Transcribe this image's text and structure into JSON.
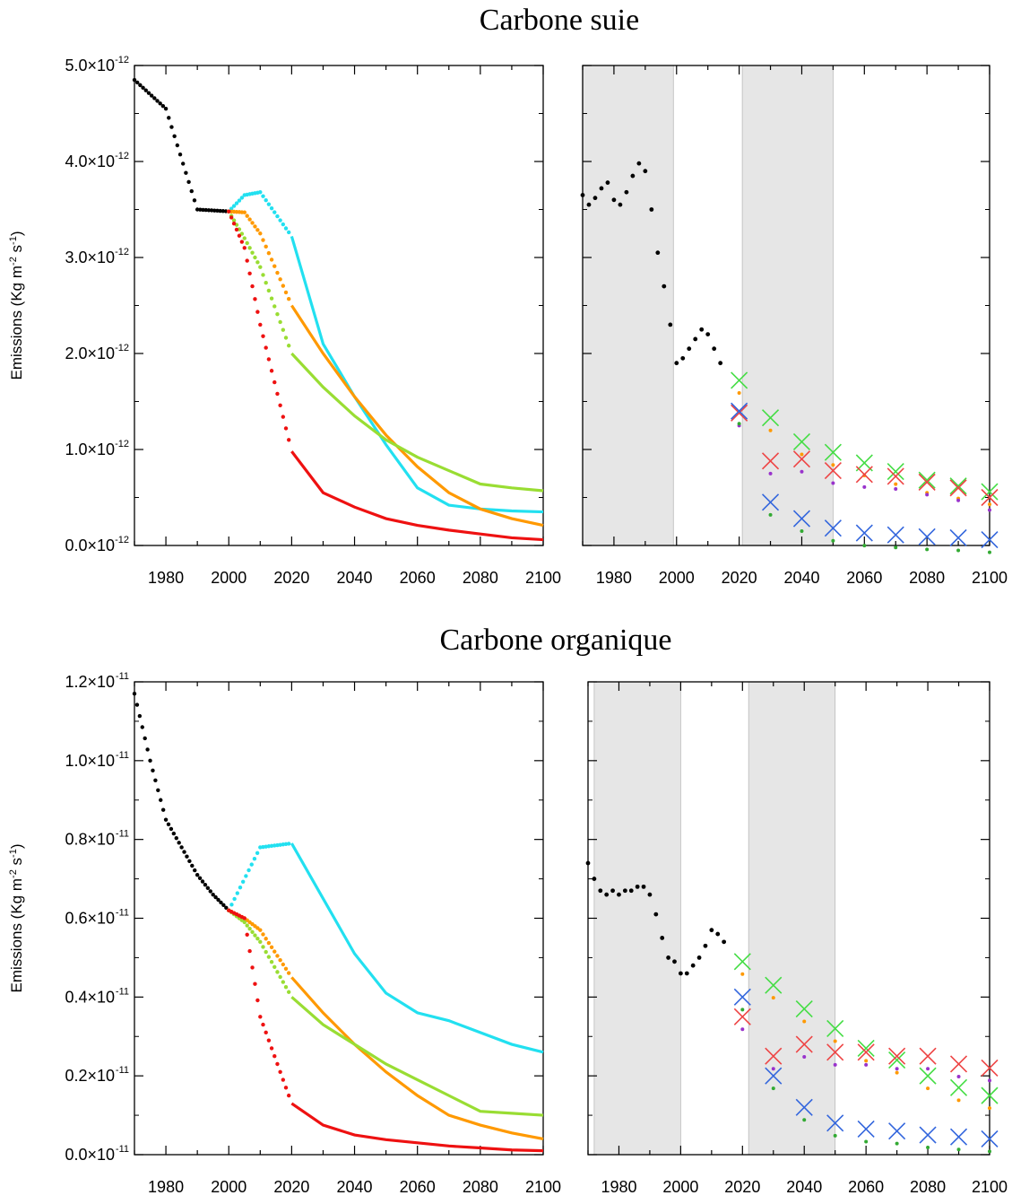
{
  "figure": {
    "top_title": "Carbone suie",
    "bottom_title": "Carbone organique"
  },
  "colors": {
    "historical": "#000000",
    "cyan": "#22e0f0",
    "orange": "#ff9900",
    "lightgreen": "#99dd33",
    "red": "#ee1111",
    "green_x": "#44dd44",
    "red_x": "#ee4444",
    "blue_x": "#3366dd",
    "shade": "#e6e6e6"
  },
  "chart_data": [
    {
      "id": "bc-left",
      "type": "line",
      "title": "Carbone suie",
      "ylabel": "Emissions (Kg m-2 s-1)",
      "ylabel_parts": {
        "pre": "Emissions (Kg m",
        "exp1": "-2",
        "mid": " s",
        "exp2": "-1",
        "post": ")"
      },
      "y_exponent": "-12",
      "xlim": [
        1970,
        2100
      ],
      "ylim": [
        0,
        5.0
      ],
      "x_ticks": [
        "1980",
        "2000",
        "2020",
        "2040",
        "2060",
        "2080",
        "2100"
      ],
      "y_ticks": [
        {
          "value": 0.0,
          "label": "0.0×10"
        },
        {
          "value": 1.0,
          "label": "1.0×10"
        },
        {
          "value": 2.0,
          "label": "2.0×10"
        },
        {
          "value": 3.0,
          "label": "3.0×10"
        },
        {
          "value": 4.0,
          "label": "4.0×10"
        },
        {
          "value": 5.0,
          "label": "5.0×10"
        }
      ],
      "series": [
        {
          "color": "#000000",
          "x": [
            1970,
            1980,
            1990,
            2000
          ],
          "y": [
            4.85,
            4.55,
            3.5,
            3.48
          ]
        },
        {
          "color": "#22e0f0",
          "x": [
            2000,
            2005,
            2010,
            2020,
            2030,
            2040,
            2050,
            2060,
            2070,
            2080,
            2090,
            2100
          ],
          "y": [
            3.48,
            3.65,
            3.68,
            3.22,
            2.1,
            1.55,
            1.05,
            0.6,
            0.42,
            0.38,
            0.36,
            0.35
          ]
        },
        {
          "color": "#ff9900",
          "x": [
            2000,
            2005,
            2010,
            2020,
            2030,
            2040,
            2050,
            2060,
            2070,
            2080,
            2090,
            2100
          ],
          "y": [
            3.48,
            3.47,
            3.25,
            2.5,
            2.0,
            1.55,
            1.15,
            0.82,
            0.55,
            0.38,
            0.28,
            0.21
          ]
        },
        {
          "color": "#99dd33",
          "x": [
            2000,
            2005,
            2010,
            2020,
            2030,
            2040,
            2050,
            2060,
            2070,
            2080,
            2090,
            2100
          ],
          "y": [
            3.48,
            3.2,
            2.9,
            2.0,
            1.65,
            1.35,
            1.1,
            0.92,
            0.78,
            0.64,
            0.6,
            0.57
          ]
        },
        {
          "color": "#ee1111",
          "x": [
            2000,
            2005,
            2010,
            2020,
            2030,
            2040,
            2050,
            2060,
            2070,
            2080,
            2090,
            2100
          ],
          "y": [
            3.48,
            3.1,
            2.3,
            0.98,
            0.55,
            0.4,
            0.28,
            0.21,
            0.16,
            0.12,
            0.08,
            0.06
          ]
        }
      ]
    },
    {
      "id": "bc-right",
      "type": "scatter",
      "xlim": [
        1970,
        2100
      ],
      "ylim": [
        0,
        5.0
      ],
      "x_ticks": [
        "1980",
        "2000",
        "2020",
        "2040",
        "2060",
        "2080",
        "2100"
      ],
      "shaded_x": [
        [
          1970,
          1999
        ],
        [
          2021,
          2050
        ]
      ],
      "historical": {
        "x": [
          1970,
          1972,
          1974,
          1976,
          1978,
          1980,
          1982,
          1984,
          1986,
          1988,
          1990,
          1992,
          1994,
          1996,
          1998,
          2000,
          2002,
          2004,
          2006,
          2008,
          2010,
          2012,
          2014
        ],
        "y": [
          3.65,
          3.55,
          3.62,
          3.72,
          3.78,
          3.6,
          3.55,
          3.68,
          3.85,
          3.98,
          3.9,
          3.5,
          3.05,
          2.7,
          2.3,
          1.9,
          1.95,
          2.05,
          2.15,
          2.25,
          2.2,
          2.05,
          1.9
        ]
      },
      "markers": [
        {
          "color": "#44dd44",
          "x": [
            2020,
            2030,
            2040,
            2050,
            2060,
            2070,
            2080,
            2090,
            2100
          ],
          "y": [
            1.72,
            1.33,
            1.08,
            0.97,
            0.86,
            0.77,
            0.68,
            0.62,
            0.56
          ]
        },
        {
          "color": "#ee4444",
          "x": [
            2020,
            2030,
            2040,
            2050,
            2060,
            2070,
            2080,
            2090,
            2100
          ],
          "y": [
            1.38,
            0.88,
            0.9,
            0.78,
            0.74,
            0.72,
            0.66,
            0.6,
            0.5
          ]
        },
        {
          "color": "#3366dd",
          "x": [
            2020,
            2030,
            2040,
            2050,
            2060,
            2070,
            2080,
            2090,
            2100
          ],
          "y": [
            1.4,
            0.45,
            0.28,
            0.18,
            0.13,
            0.11,
            0.09,
            0.08,
            0.06
          ]
        }
      ]
    },
    {
      "id": "oc-left",
      "type": "line",
      "title": "Carbone organique",
      "ylabel": "Emissions (Kg m-2 s-1)",
      "ylabel_parts": {
        "pre": "Emissions (Kg m",
        "exp1": "-2",
        "mid": " s",
        "exp2": "-1",
        "post": ")"
      },
      "y_exponent": "-11",
      "xlim": [
        1970,
        2100
      ],
      "ylim": [
        0,
        1.2
      ],
      "x_ticks": [
        "1980",
        "2000",
        "2020",
        "2040",
        "2060",
        "2080",
        "2100"
      ],
      "y_ticks": [
        {
          "value": 0.0,
          "label": "0.0×10"
        },
        {
          "value": 0.2,
          "label": "0.2×10"
        },
        {
          "value": 0.4,
          "label": "0.4×10"
        },
        {
          "value": 0.6,
          "label": "0.6×10"
        },
        {
          "value": 0.8,
          "label": "0.8×10"
        },
        {
          "value": 1.0,
          "label": "1.0×10"
        },
        {
          "value": 1.2,
          "label": "1.2×10"
        }
      ],
      "series": [
        {
          "color": "#000000",
          "x": [
            1970,
            1975,
            1980,
            1985,
            1990,
            1995,
            2000
          ],
          "y": [
            1.17,
            1.0,
            0.85,
            0.78,
            0.71,
            0.66,
            0.62
          ]
        },
        {
          "color": "#22e0f0",
          "x": [
            2000,
            2010,
            2020,
            2030,
            2040,
            2050,
            2060,
            2070,
            2080,
            2090,
            2100
          ],
          "y": [
            0.62,
            0.78,
            0.79,
            0.65,
            0.51,
            0.41,
            0.36,
            0.34,
            0.31,
            0.28,
            0.26
          ]
        },
        {
          "color": "#ff9900",
          "x": [
            2000,
            2005,
            2010,
            2020,
            2030,
            2040,
            2050,
            2060,
            2070,
            2080,
            2090,
            2100
          ],
          "y": [
            0.62,
            0.6,
            0.57,
            0.45,
            0.36,
            0.28,
            0.21,
            0.15,
            0.1,
            0.075,
            0.055,
            0.04
          ]
        },
        {
          "color": "#99dd33",
          "x": [
            2000,
            2005,
            2010,
            2020,
            2030,
            2040,
            2050,
            2060,
            2070,
            2080,
            2090,
            2100
          ],
          "y": [
            0.62,
            0.59,
            0.54,
            0.4,
            0.33,
            0.28,
            0.23,
            0.19,
            0.15,
            0.11,
            0.105,
            0.1
          ]
        },
        {
          "color": "#ee1111",
          "x": [
            2000,
            2005,
            2010,
            2020,
            2030,
            2040,
            2050,
            2060,
            2070,
            2080,
            2090,
            2100
          ],
          "y": [
            0.62,
            0.6,
            0.35,
            0.13,
            0.075,
            0.05,
            0.038,
            0.03,
            0.022,
            0.017,
            0.012,
            0.01
          ]
        }
      ]
    },
    {
      "id": "oc-right",
      "type": "scatter",
      "xlim": [
        1970,
        2100
      ],
      "ylim": [
        0,
        1.2
      ],
      "x_ticks": [
        "1980",
        "2000",
        "2020",
        "2040",
        "2060",
        "2080",
        "2100"
      ],
      "shaded_x": [
        [
          1972,
          2000
        ],
        [
          2022,
          2050
        ]
      ],
      "historical": {
        "x": [
          1970,
          1972,
          1974,
          1976,
          1978,
          1980,
          1982,
          1984,
          1986,
          1988,
          1990,
          1992,
          1994,
          1996,
          1998,
          2000,
          2002,
          2004,
          2006,
          2008,
          2010,
          2012,
          2014
        ],
        "y": [
          0.74,
          0.7,
          0.67,
          0.66,
          0.67,
          0.66,
          0.67,
          0.67,
          0.68,
          0.68,
          0.66,
          0.61,
          0.55,
          0.5,
          0.49,
          0.46,
          0.46,
          0.48,
          0.5,
          0.53,
          0.57,
          0.56,
          0.54
        ]
      },
      "markers": [
        {
          "color": "#44dd44",
          "x": [
            2020,
            2030,
            2040,
            2050,
            2060,
            2070,
            2080,
            2090,
            2100
          ],
          "y": [
            0.49,
            0.43,
            0.37,
            0.32,
            0.27,
            0.24,
            0.2,
            0.17,
            0.15
          ]
        },
        {
          "color": "#ee4444",
          "x": [
            2020,
            2030,
            2040,
            2050,
            2060,
            2070,
            2080,
            2090,
            2100
          ],
          "y": [
            0.35,
            0.25,
            0.28,
            0.26,
            0.26,
            0.25,
            0.25,
            0.23,
            0.22
          ]
        },
        {
          "color": "#3366dd",
          "x": [
            2020,
            2030,
            2040,
            2050,
            2060,
            2070,
            2080,
            2090,
            2100
          ],
          "y": [
            0.4,
            0.2,
            0.12,
            0.08,
            0.065,
            0.06,
            0.05,
            0.045,
            0.04
          ]
        }
      ]
    }
  ]
}
